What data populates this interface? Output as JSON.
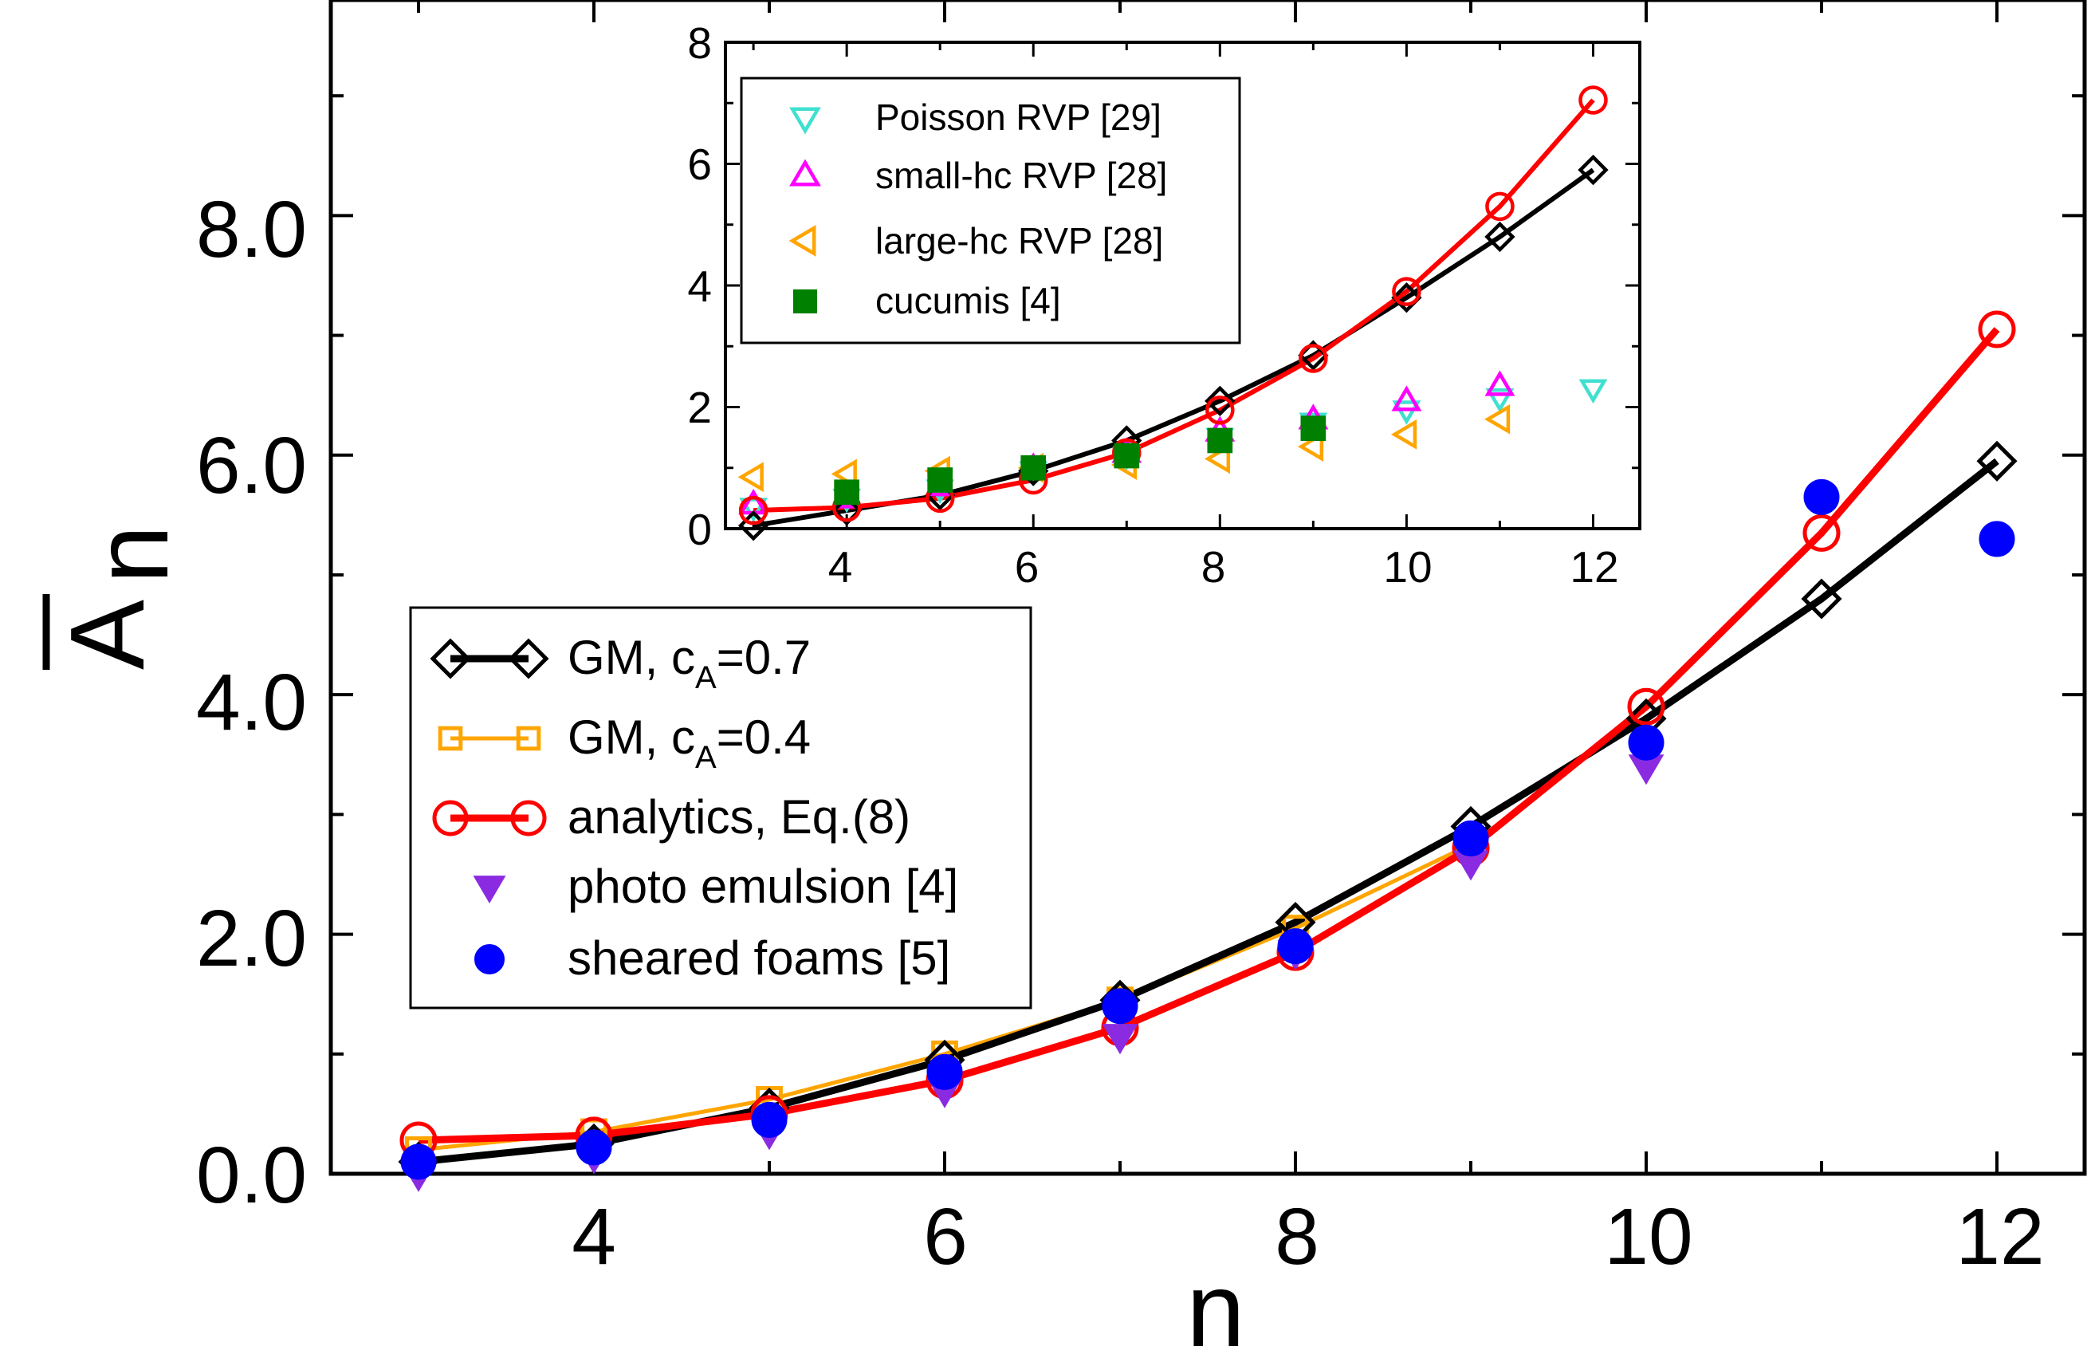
{
  "chart_data": [
    {
      "type": "line",
      "panel": "main",
      "xlabel": "n",
      "ylabel": "A",
      "ylabel_sub": "n",
      "xlim": [
        2.5,
        12.5
      ],
      "ylim": [
        0,
        9.8
      ],
      "xticks": [
        "4",
        "6",
        "8",
        "10",
        "12"
      ],
      "yticks": [
        "0.0",
        "2.0",
        "4.0",
        "6.0",
        "8.0"
      ],
      "series": [
        {
          "name": "GM, c",
          "sub": "A",
          "suffix": "=0.7",
          "color": "#000000",
          "marker": "diamond",
          "lines": true,
          "x": [
            3,
            4,
            5,
            6,
            7,
            8,
            9,
            10,
            11,
            12
          ],
          "y": [
            0.1,
            0.25,
            0.55,
            0.95,
            1.45,
            2.1,
            2.9,
            3.8,
            4.8,
            5.95
          ]
        },
        {
          "name": "GM, c",
          "sub": "A",
          "suffix": "=0.4",
          "color": "#FFA500",
          "marker": "square",
          "lines": true,
          "x": [
            3,
            4,
            5,
            6,
            7,
            8,
            9
          ],
          "y": [
            0.2,
            0.35,
            0.62,
            1.0,
            1.45,
            2.05,
            2.75
          ]
        },
        {
          "name": "analytics, Eq.(8)",
          "color": "#FF0000",
          "marker": "circle",
          "lines": true,
          "x": [
            3,
            4,
            5,
            6,
            7,
            8,
            9,
            10,
            11,
            12
          ],
          "y": [
            0.28,
            0.32,
            0.5,
            0.78,
            1.22,
            1.85,
            2.72,
            3.9,
            5.35,
            7.05
          ]
        },
        {
          "name": "photo emulsion [4]",
          "color": "#8A2BE2",
          "marker": "triangle-down-filled",
          "lines": false,
          "x": [
            3,
            4,
            5,
            6,
            7,
            8,
            9,
            10
          ],
          "y": [
            0.0,
            0.15,
            0.35,
            0.7,
            1.15,
            1.85,
            2.6,
            3.4
          ]
        },
        {
          "name": "sheared foams [5]",
          "color": "#0000FF",
          "marker": "circle-filled",
          "lines": false,
          "x": [
            3,
            4,
            5,
            6,
            7,
            8,
            9,
            10,
            11,
            12
          ],
          "y": [
            0.1,
            0.22,
            0.45,
            0.85,
            1.4,
            1.9,
            2.8,
            3.6,
            5.65,
            5.3
          ]
        }
      ]
    },
    {
      "type": "line",
      "panel": "inset",
      "xlim": [
        2.7,
        12.5
      ],
      "ylim": [
        0,
        8
      ],
      "xticks": [
        "4",
        "6",
        "8",
        "10",
        "12"
      ],
      "yticks": [
        "0",
        "2",
        "4",
        "6",
        "8"
      ],
      "series": [
        {
          "name": "GM, c_A=0.7",
          "color": "#000000",
          "marker": "diamond",
          "lines": true,
          "in_legend": false,
          "x": [
            3,
            4,
            5,
            6,
            7,
            8,
            9,
            10,
            11,
            12
          ],
          "y": [
            0.05,
            0.3,
            0.55,
            0.95,
            1.45,
            2.1,
            2.85,
            3.8,
            4.8,
            5.9
          ]
        },
        {
          "name": "analytics, Eq.(8)",
          "color": "#FF0000",
          "marker": "circle",
          "lines": true,
          "in_legend": false,
          "x": [
            3,
            4,
            5,
            6,
            7,
            8,
            9,
            10,
            11,
            12
          ],
          "y": [
            0.3,
            0.35,
            0.5,
            0.8,
            1.25,
            1.95,
            2.8,
            3.9,
            5.3,
            7.05
          ]
        },
        {
          "name": "Poisson RVP [29]",
          "color": "#40E0D0",
          "marker": "triangle-down",
          "lines": false,
          "in_legend": true,
          "x": [
            3,
            4,
            5,
            6,
            7,
            8,
            9,
            10,
            11,
            12
          ],
          "y": [
            0.35,
            0.5,
            0.65,
            0.95,
            1.2,
            1.5,
            1.75,
            1.95,
            2.15,
            2.3
          ]
        },
        {
          "name": "small-hc RVP [28]",
          "color": "#FF00FF",
          "marker": "triangle-up",
          "lines": false,
          "in_legend": true,
          "x": [
            3,
            4,
            5,
            6,
            7,
            8,
            9,
            10,
            11
          ],
          "y": [
            0.4,
            0.5,
            0.7,
            1.0,
            1.25,
            1.6,
            1.8,
            2.1,
            2.35
          ]
        },
        {
          "name": "large-hc RVP [28]",
          "color": "#FFA500",
          "marker": "triangle-left",
          "lines": false,
          "in_legend": true,
          "x": [
            3,
            4,
            5,
            6,
            7,
            8,
            9,
            10,
            11
          ],
          "y": [
            0.85,
            0.9,
            0.95,
            1.0,
            1.05,
            1.15,
            1.35,
            1.55,
            1.8
          ]
        },
        {
          "name": "cucumis [4]",
          "color": "#008000",
          "marker": "square-filled",
          "lines": false,
          "in_legend": true,
          "x": [
            4,
            5,
            6,
            7,
            8,
            9
          ],
          "y": [
            0.6,
            0.8,
            1.0,
            1.2,
            1.45,
            1.65
          ]
        }
      ]
    }
  ]
}
